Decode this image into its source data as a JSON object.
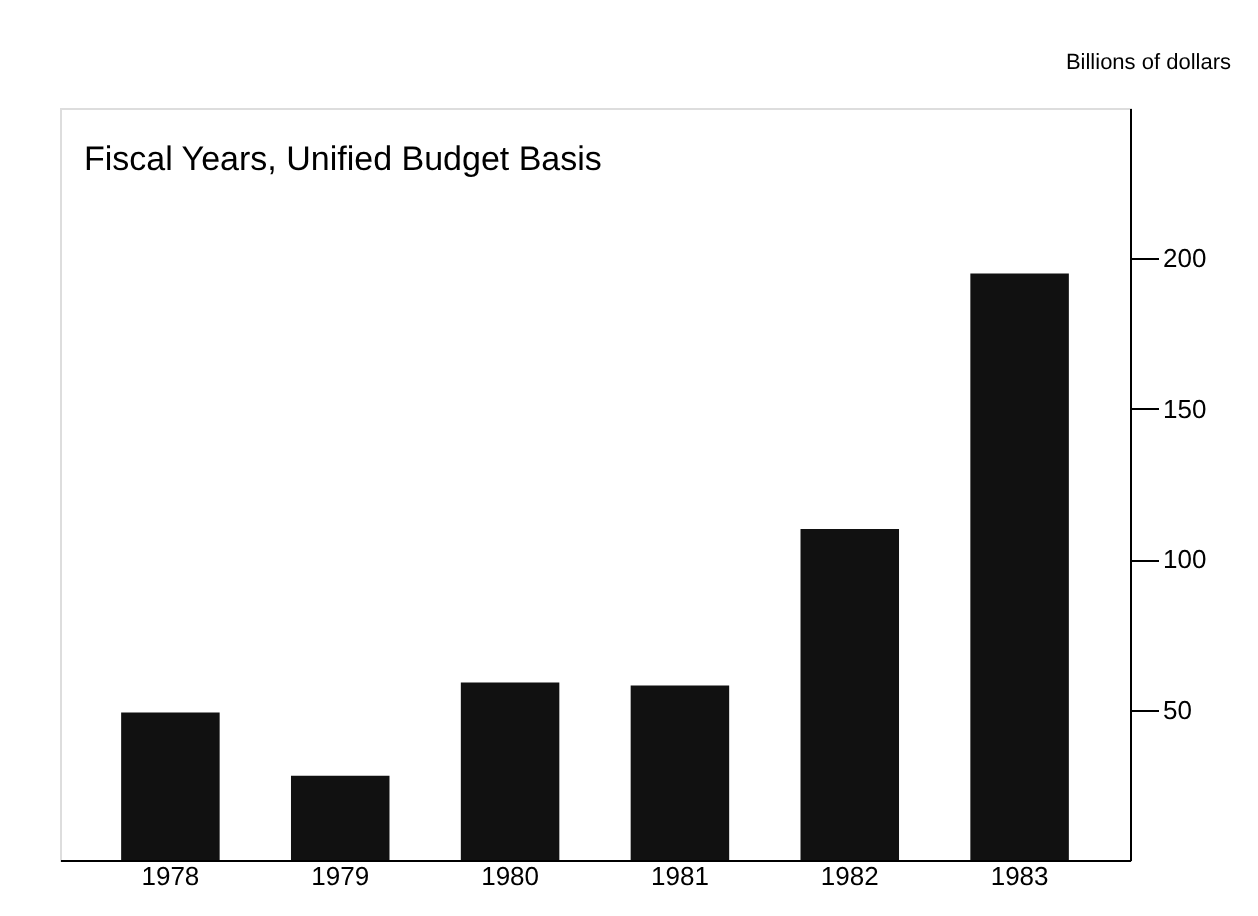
{
  "chart_data": {
    "type": "bar",
    "title": "Fiscal Years, Unified Budget Basis",
    "ylabel": "Billions of dollars",
    "categories": [
      "1978",
      "1979",
      "1980",
      "1981",
      "1982",
      "1983"
    ],
    "values": [
      49,
      28,
      59,
      58,
      110,
      195
    ],
    "color": "#111111",
    "ylim": [
      0,
      250
    ],
    "yticks": [
      50,
      100,
      150,
      200
    ],
    "grid": false
  }
}
